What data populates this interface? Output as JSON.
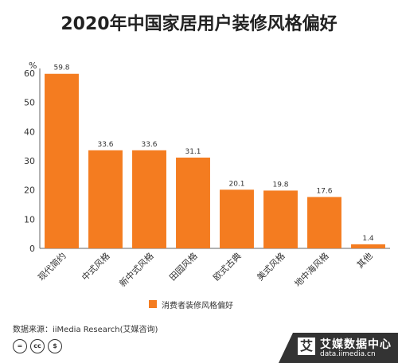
{
  "chart_data": {
    "type": "bar",
    "title": "2020年中国家居用户装修风格偏好",
    "ylabel": "%",
    "ylim": [
      0,
      60
    ],
    "yticks": [
      0,
      10,
      20,
      30,
      40,
      50,
      60
    ],
    "categories": [
      "现代简约",
      "中式风格",
      "新中式风格",
      "田园风格",
      "欧式古典",
      "美式风格",
      "地中海风格",
      "其他"
    ],
    "series": [
      {
        "name": "消费者装修风格偏好",
        "values": [
          59.8,
          33.6,
          33.6,
          31.1,
          20.1,
          19.8,
          17.6,
          1.4
        ],
        "labels": [
          "59.8",
          "33.6",
          "33.6",
          "31.1",
          "20.1",
          "19.8",
          "17.6",
          "1.4"
        ]
      }
    ],
    "grid": false,
    "legend": "bottom",
    "color": "#F47C20"
  },
  "source": "数据来源：iiMedia Research(艾媒咨询)",
  "license_icons": [
    "=",
    "cc",
    "$"
  ],
  "brand": {
    "name": "艾媒数据中心",
    "url": "data.iimedia.cn",
    "logo_char": "艾"
  }
}
